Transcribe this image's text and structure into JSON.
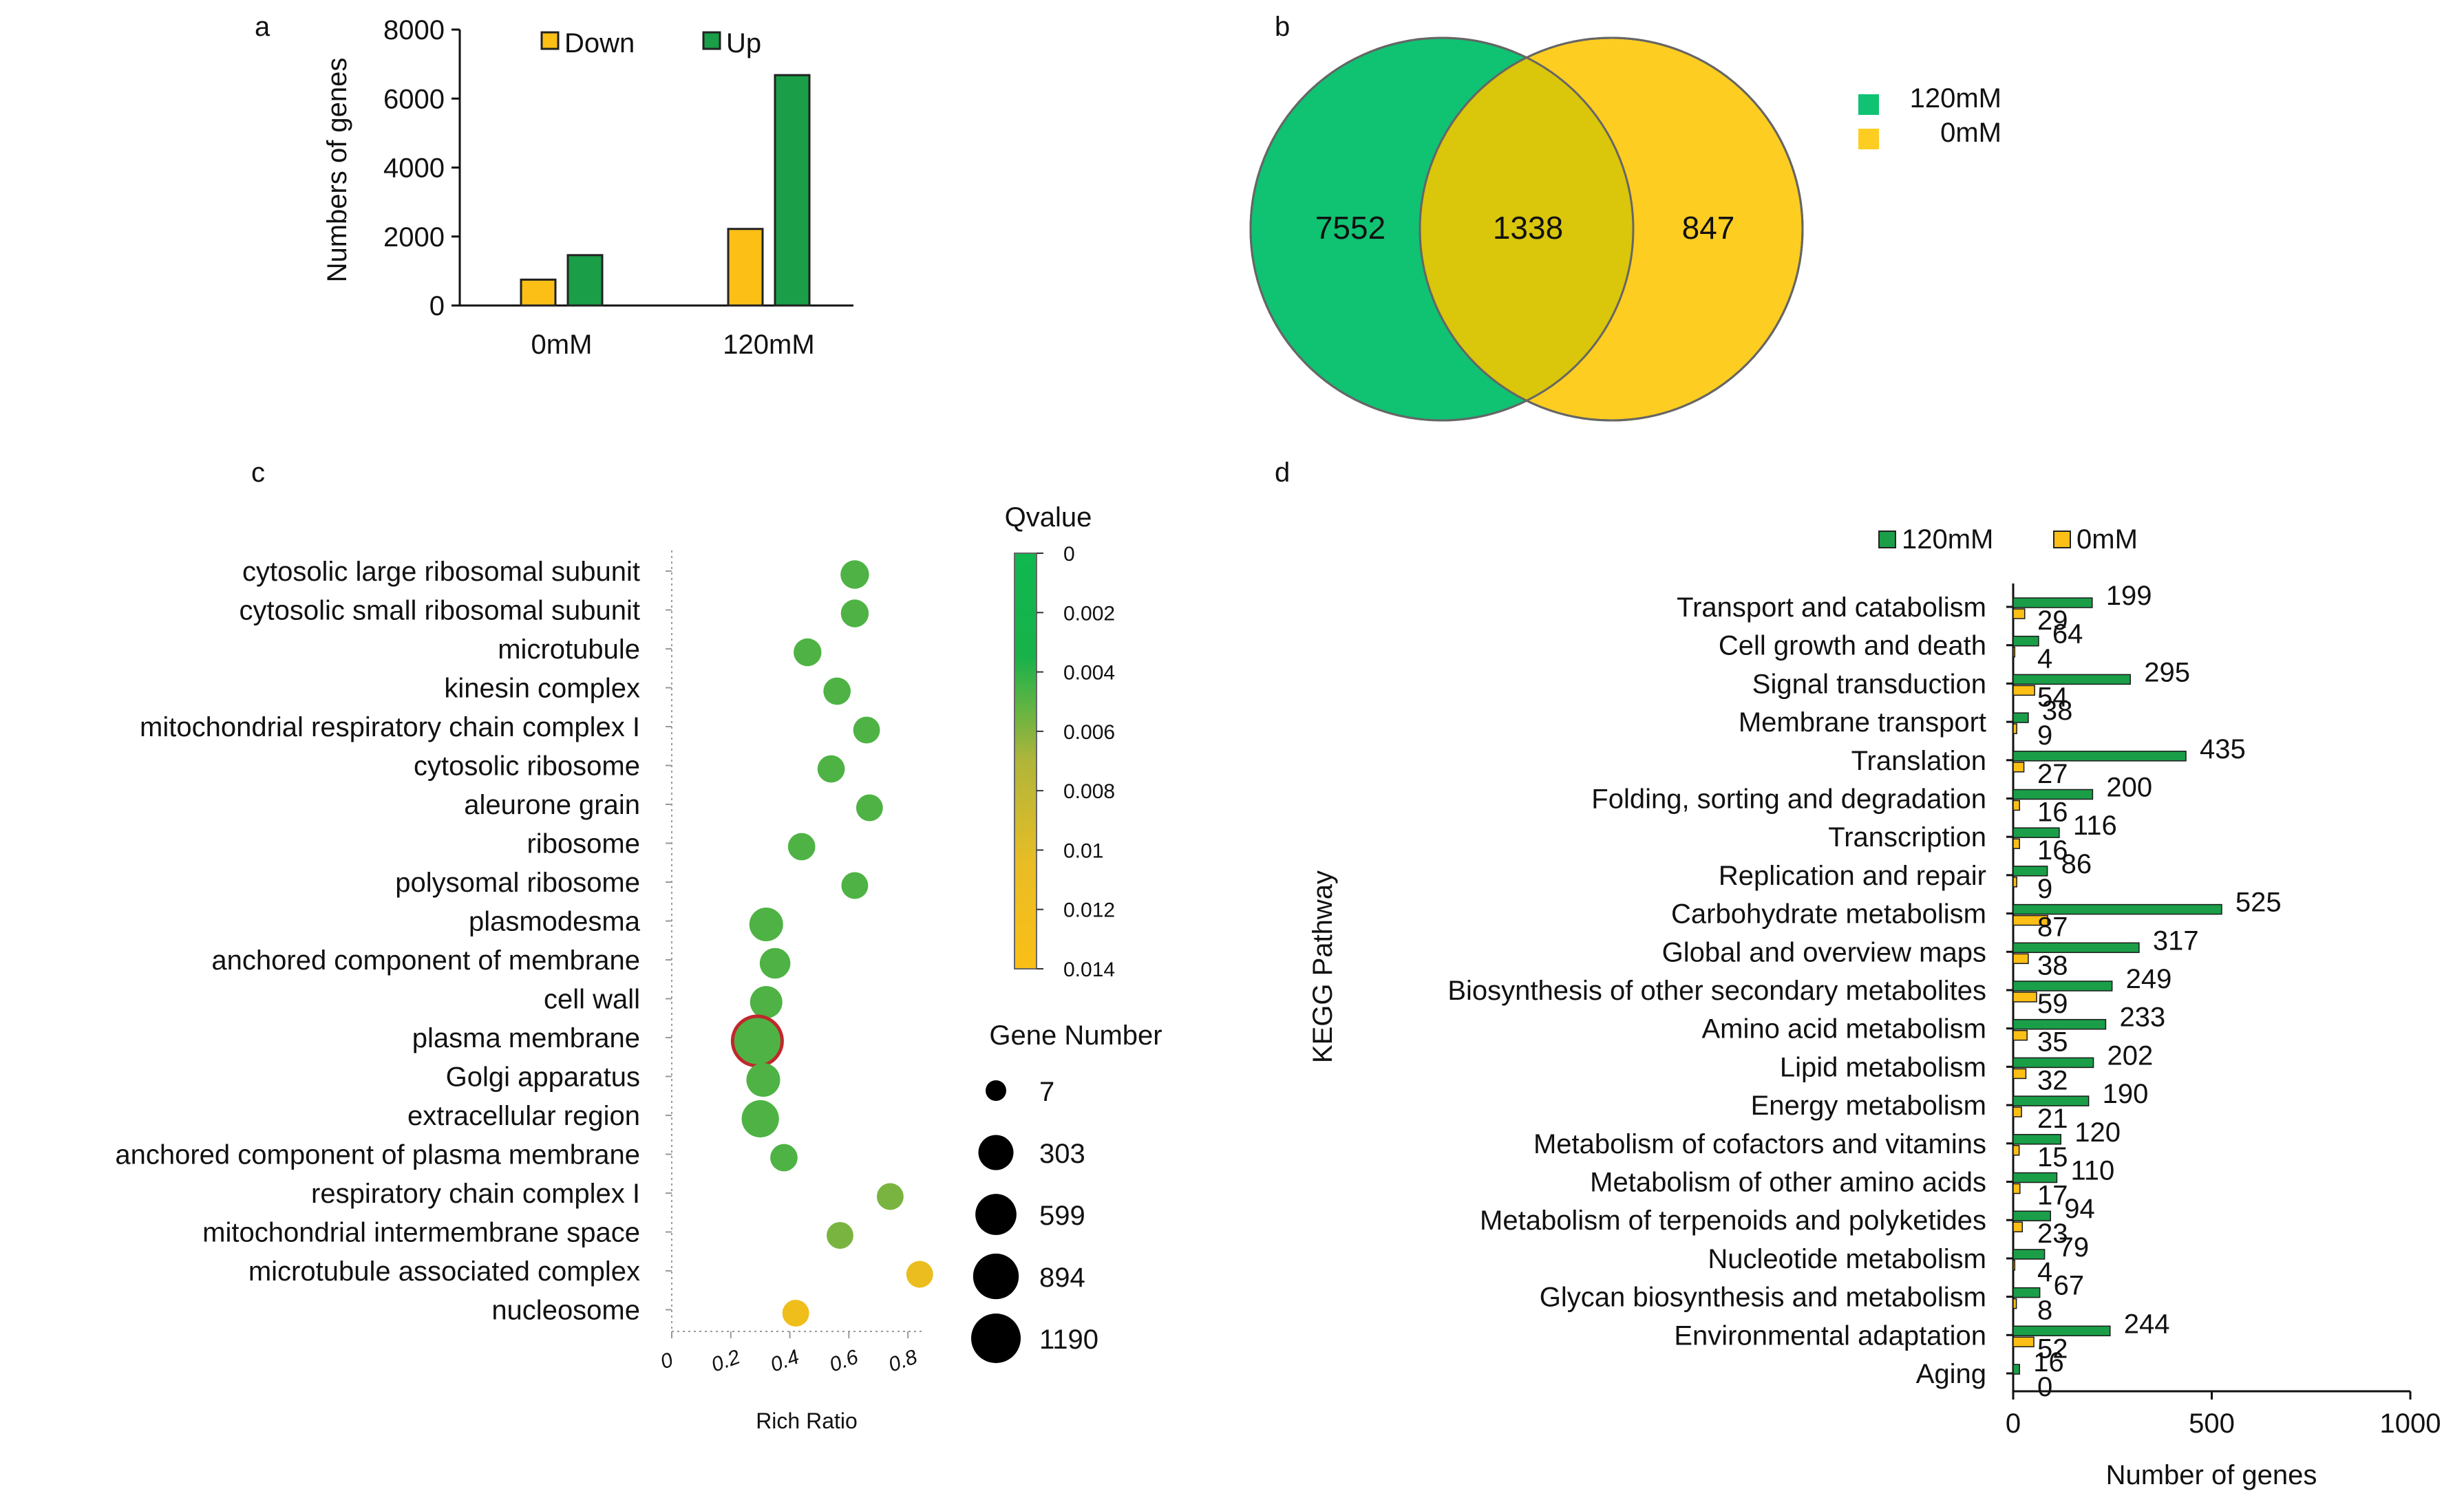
{
  "panels": {
    "a": "a",
    "b": "b",
    "c": "c",
    "d": "d"
  },
  "colors": {
    "up": "#1a9e48",
    "down": "#fbbf16",
    "venn_green": "#0fc373",
    "venn_yellow": "#fdcd21",
    "venn_overlap": "#dac60a",
    "circle_highlight": "#c0282d",
    "axis": "#111111"
  },
  "chart_data": [
    {
      "panel": "a",
      "type": "bar",
      "categories": [
        "0mM",
        "120mM"
      ],
      "series": [
        {
          "name": "Down",
          "values": [
            750,
            2220
          ]
        },
        {
          "name": "Up",
          "values": [
            1460,
            6680
          ]
        }
      ],
      "ylabel": "Numbers of genes",
      "xlabel": "",
      "ylim": [
        0,
        8000
      ],
      "yticks": [
        0,
        2000,
        4000,
        6000,
        8000
      ],
      "legend_position": "top"
    },
    {
      "panel": "b",
      "type": "venn",
      "sets": [
        "120mM",
        "0mM"
      ],
      "regions": {
        "only_120mM": 7552,
        "both": 1338,
        "only_0mM": 847
      },
      "legend_position": "right"
    },
    {
      "panel": "c",
      "type": "scatter",
      "title": "",
      "xlabel": "Rich Ratio",
      "xlim": [
        0,
        0.9
      ],
      "xticks": [
        0,
        0.2,
        0.4,
        0.6,
        0.8
      ],
      "terms": [
        {
          "name": "cytosolic large ribosomal subunit",
          "rich_ratio": 0.62,
          "gene_number": 95,
          "qvalue": 0.0025
        },
        {
          "name": "cytosolic small ribosomal subunit",
          "rich_ratio": 0.62,
          "gene_number": 80,
          "qvalue": 0.0025
        },
        {
          "name": "microtubule",
          "rich_ratio": 0.46,
          "gene_number": 80,
          "qvalue": 0.0025
        },
        {
          "name": "kinesin complex",
          "rich_ratio": 0.56,
          "gene_number": 70,
          "qvalue": 0.0025
        },
        {
          "name": "mitochondrial respiratory chain complex I",
          "rich_ratio": 0.66,
          "gene_number": 60,
          "qvalue": 0.0025
        },
        {
          "name": "cytosolic ribosome",
          "rich_ratio": 0.54,
          "gene_number": 70,
          "qvalue": 0.0025
        },
        {
          "name": "aleurone grain",
          "rich_ratio": 0.67,
          "gene_number": 60,
          "qvalue": 0.0025
        },
        {
          "name": "ribosome",
          "rich_ratio": 0.44,
          "gene_number": 70,
          "qvalue": 0.0025
        },
        {
          "name": "polysomal ribosome",
          "rich_ratio": 0.62,
          "gene_number": 60,
          "qvalue": 0.0025
        },
        {
          "name": "plasmodesma",
          "rich_ratio": 0.32,
          "gene_number": 250,
          "qvalue": 0.0025
        },
        {
          "name": "anchored component of membrane",
          "rich_ratio": 0.35,
          "gene_number": 150,
          "qvalue": 0.0025
        },
        {
          "name": "cell wall",
          "rich_ratio": 0.32,
          "gene_number": 200,
          "qvalue": 0.0025
        },
        {
          "name": "plasma membrane",
          "rich_ratio": 0.29,
          "gene_number": 1190,
          "qvalue": 0.0025
        },
        {
          "name": "Golgi apparatus",
          "rich_ratio": 0.31,
          "gene_number": 250,
          "qvalue": 0.0025
        },
        {
          "name": "extracellular region",
          "rich_ratio": 0.3,
          "gene_number": 400,
          "qvalue": 0.0025
        },
        {
          "name": "anchored component of plasma membrane",
          "rich_ratio": 0.38,
          "gene_number": 70,
          "qvalue": 0.0025
        },
        {
          "name": "respiratory chain complex I",
          "rich_ratio": 0.74,
          "gene_number": 60,
          "qvalue": 0.0045
        },
        {
          "name": "mitochondrial intermembrane space",
          "rich_ratio": 0.57,
          "gene_number": 60,
          "qvalue": 0.0045
        },
        {
          "name": "microtubule associated complex",
          "rich_ratio": 0.84,
          "gene_number": 60,
          "qvalue": 0.0125
        },
        {
          "name": "nucleosome",
          "rich_ratio": 0.42,
          "gene_number": 60,
          "qvalue": 0.013
        }
      ],
      "color_legend": {
        "title": "Qvalue",
        "ticks": [
          "0",
          "0.002",
          "0.004",
          "0.006",
          "0.008",
          "0.01",
          "0.012",
          "0.014"
        ]
      },
      "size_legend": {
        "title": "Gene Number",
        "values": [
          7,
          303,
          599,
          894,
          1190
        ]
      }
    },
    {
      "panel": "d",
      "type": "bar",
      "orientation": "horizontal",
      "categories": [
        "Transport and catabolism",
        "Cell growth and death",
        "Signal transduction",
        "Membrane transport",
        "Translation",
        "Folding, sorting and degradation",
        "Transcription",
        "Replication and repair",
        "Carbohydrate metabolism",
        "Global and overview maps",
        "Biosynthesis of other secondary metabolites",
        "Amino acid metabolism",
        "Lipid metabolism",
        "Energy metabolism",
        "Metabolism of cofactors and vitamins",
        "Metabolism of other amino acids",
        "Metabolism of terpenoids and polyketides",
        "Nucleotide metabolism",
        "Glycan biosynthesis and metabolism",
        "Environmental adaptation",
        "Aging"
      ],
      "series": [
        {
          "name": "120mM",
          "values": [
            199,
            64,
            295,
            38,
            435,
            200,
            116,
            86,
            525,
            317,
            249,
            233,
            202,
            190,
            120,
            110,
            94,
            79,
            67,
            244,
            16
          ]
        },
        {
          "name": "0mM",
          "values": [
            29,
            4,
            54,
            9,
            27,
            16,
            16,
            9,
            87,
            38,
            59,
            35,
            32,
            21,
            15,
            17,
            23,
            4,
            8,
            52,
            0
          ]
        }
      ],
      "xlabel": "Number of genes",
      "ylabel": "KEGG Pathway",
      "xlim": [
        0,
        1000
      ],
      "xticks": [
        0,
        500,
        1000
      ],
      "legend_position": "top"
    }
  ]
}
